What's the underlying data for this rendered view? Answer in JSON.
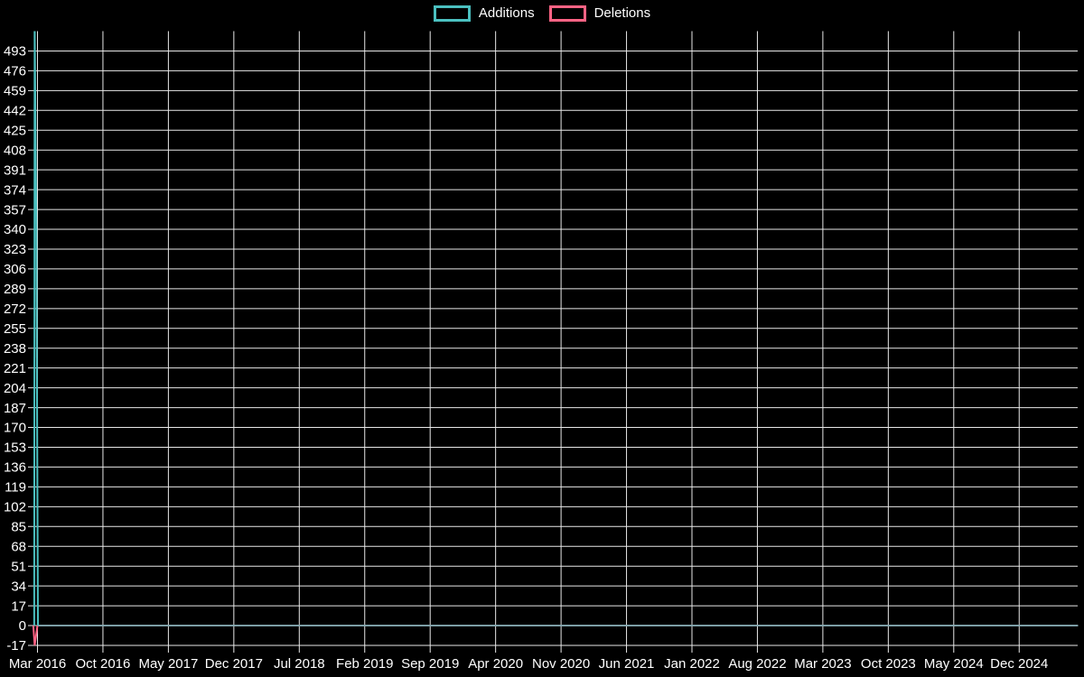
{
  "chart_data": {
    "type": "line",
    "title": "",
    "xlabel": "",
    "ylabel": "",
    "legend_position": "top",
    "grid": true,
    "background_color": "#000000",
    "grid_color": "#e8e8e8",
    "tick_label_color": "#ffffff",
    "ylim": [
      -17,
      510
    ],
    "y_ticks": [
      -17,
      0,
      17,
      34,
      51,
      68,
      85,
      102,
      119,
      136,
      153,
      170,
      187,
      204,
      221,
      238,
      255,
      272,
      289,
      306,
      323,
      340,
      357,
      374,
      391,
      408,
      425,
      442,
      459,
      476,
      493
    ],
    "x_tick_labels": [
      "Mar 2016",
      "Oct 2016",
      "May 2017",
      "Dec 2017",
      "Jul 2018",
      "Feb 2019",
      "Sep 2019",
      "Apr 2020",
      "Nov 2020",
      "Jun 2021",
      "Jan 2022",
      "Aug 2022",
      "Mar 2023",
      "Oct 2023",
      "May 2024",
      "Dec 2024"
    ],
    "x_tick_interval_months": 7,
    "series": [
      {
        "name": "Additions",
        "color": "#4bc0c0",
        "line_width": 2,
        "zero_run_opacity": 0.6,
        "note": "Single spike at Mar 2016 reaching chart top (~510) with shoulder at ~340, value 0 for all later dates",
        "points_t_months_vs_value": [
          [
            -0.35,
            0
          ],
          [
            -0.3,
            510
          ],
          [
            -0.12,
            340
          ],
          [
            0.05,
            0
          ],
          [
            111.3,
            0
          ]
        ]
      },
      {
        "name": "Deletions",
        "color": "#ff6384",
        "line_width": 2,
        "zero_run_opacity": 0.6,
        "note": "Single downward spike at Mar 2016 to about -17, value 0 for all later dates",
        "points_t_months_vs_value": [
          [
            -0.45,
            0
          ],
          [
            -0.3,
            -17
          ],
          [
            0.0,
            0
          ],
          [
            111.3,
            0
          ]
        ]
      }
    ]
  }
}
